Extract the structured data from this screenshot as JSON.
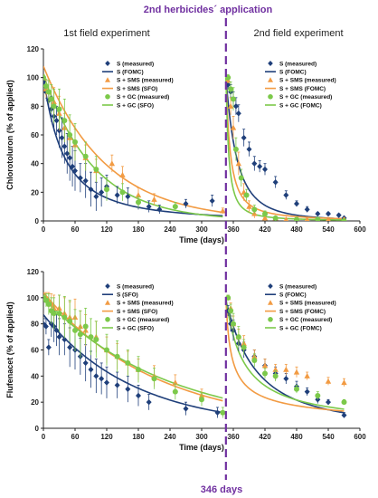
{
  "annotations": {
    "top": "2nd herbicides´ application",
    "bottom": "346 days",
    "line_color": "#7030a0"
  },
  "panel_titles": [
    "1st field experiment",
    "2nd field experiment"
  ],
  "colors": {
    "S": "#1f3f7a",
    "SMS": "#f29b43",
    "GC": "#7cc94a",
    "axis": "#222222"
  },
  "chart_data": [
    {
      "type": "scatter",
      "ylabel": "Chlorotoluron (% of applied)",
      "xlabel": "Time (days)",
      "xlim": [
        0,
        600
      ],
      "ylim": [
        0,
        120
      ],
      "xticks": [
        0,
        60,
        120,
        180,
        240,
        300,
        360,
        420,
        480,
        540,
        600
      ],
      "yticks": [
        0,
        20,
        40,
        60,
        80,
        100,
        120
      ],
      "grid": false,
      "legend_position": "top",
      "legend": [
        "S (measured)",
        "S (FOMC)",
        "S + SMS (measured)",
        "S + SMS (SFO)",
        "S + GC (measured)",
        "S + GC (SFO)"
      ],
      "legend2": [
        "S (measured)",
        "S (FOMC)",
        "S + SMS (measured)",
        "S + SMS (FOMC)",
        "S + GC (measured)",
        "S + GC (FOMC)"
      ],
      "series": [
        {
          "name": "S (measured)",
          "kind": "measured",
          "marker": "diamond",
          "color": "#1f3f7a",
          "x": [
            0,
            5,
            10,
            15,
            20,
            25,
            30,
            35,
            40,
            45,
            50,
            55,
            60,
            70,
            80,
            90,
            100,
            110,
            120,
            140,
            160,
            180,
            200,
            220,
            270,
            320,
            350,
            355,
            360,
            365,
            370,
            380,
            390,
            400,
            410,
            420,
            440,
            460,
            480,
            500,
            520,
            540,
            560,
            570
          ],
          "y": [
            97,
            90,
            84,
            78,
            73,
            70,
            63,
            58,
            52,
            47,
            44,
            38,
            35,
            30,
            28,
            22,
            17,
            20,
            24,
            18,
            17,
            13,
            10,
            8,
            12,
            14,
            95,
            90,
            85,
            80,
            75,
            58,
            50,
            40,
            38,
            36,
            27,
            18,
            12,
            8,
            5,
            5,
            4,
            2
          ],
          "err": [
            3,
            5,
            6,
            9,
            10,
            10,
            12,
            14,
            12,
            14,
            16,
            14,
            14,
            10,
            12,
            12,
            10,
            10,
            8,
            6,
            6,
            5,
            4,
            3,
            3,
            4,
            3,
            5,
            5,
            6,
            6,
            6,
            5,
            5,
            4,
            4,
            4,
            3,
            2,
            2,
            1,
            1,
            1,
            1
          ]
        },
        {
          "name": "S (FOMC)",
          "kind": "fit",
          "color": "#1f3f7a",
          "seg1": {
            "x0": 0,
            "x1": 340,
            "C0": 100,
            "alpha": 2.0,
            "beta": 80
          },
          "seg2": {
            "x0": 346,
            "x1": 570,
            "C0": 100,
            "alpha": 2.6,
            "beta": 55
          }
        },
        {
          "name": "S + SMS (measured)",
          "kind": "measured",
          "marker": "triangle",
          "color": "#f29b43",
          "x": [
            0,
            5,
            10,
            20,
            30,
            40,
            50,
            60,
            80,
            100,
            130,
            150,
            180,
            210,
            340,
            350,
            355,
            360,
            370,
            380,
            390,
            400,
            420,
            440,
            460,
            500,
            540,
            570
          ],
          "y": [
            100,
            92,
            90,
            83,
            75,
            65,
            58,
            53,
            44,
            35,
            40,
            32,
            18,
            15,
            7,
            98,
            80,
            65,
            40,
            20,
            10,
            5,
            2,
            2,
            1,
            1,
            1,
            1
          ],
          "err": [
            2,
            6,
            8,
            10,
            12,
            10,
            12,
            11,
            9,
            8,
            6,
            6,
            5,
            4,
            2,
            2,
            6,
            8,
            8,
            6,
            4,
            3,
            2,
            1,
            1,
            1,
            1,
            1
          ]
        },
        {
          "name": "S + SMS (SFO)",
          "kind": "fit",
          "color": "#f29b43",
          "seg1": {
            "x0": 0,
            "x1": 340,
            "C0": 108,
            "k": 0.0085
          },
          "seg2": {
            "x0": 346,
            "x1": 570,
            "C0": 100,
            "alpha": 1.4,
            "beta": 12
          }
        },
        {
          "name": "S + GC (measured)",
          "kind": "measured",
          "marker": "circle",
          "color": "#7cc94a",
          "x": [
            0,
            5,
            10,
            15,
            20,
            30,
            40,
            50,
            60,
            80,
            100,
            120,
            150,
            180,
            250,
            350,
            355,
            360,
            365,
            375,
            385,
            400,
            420,
            440,
            480,
            520,
            570
          ],
          "y": [
            100,
            94,
            90,
            85,
            80,
            78,
            70,
            60,
            55,
            45,
            36,
            22,
            20,
            13,
            10,
            100,
            92,
            85,
            50,
            30,
            18,
            8,
            5,
            2,
            1,
            1,
            0
          ],
          "err": [
            2,
            5,
            8,
            10,
            12,
            14,
            15,
            14,
            13,
            10,
            9,
            8,
            6,
            4,
            3,
            2,
            5,
            8,
            8,
            6,
            4,
            3,
            2,
            1,
            1,
            1,
            1
          ]
        },
        {
          "name": "S + GC (SFO)",
          "kind": "fit",
          "color": "#7cc94a",
          "seg1": {
            "x0": 0,
            "x1": 340,
            "C0": 102,
            "k": 0.0105
          },
          "seg2": {
            "x0": 346,
            "x1": 570,
            "C0": 100,
            "alpha": 1.5,
            "beta": 8
          }
        }
      ]
    },
    {
      "type": "scatter",
      "ylabel": "Flufenacet (% of applied)",
      "xlabel": "Time (days)",
      "xlim": [
        0,
        600
      ],
      "ylim": [
        0,
        120
      ],
      "xticks": [
        0,
        60,
        120,
        180,
        240,
        300,
        360,
        420,
        480,
        540,
        600
      ],
      "yticks": [
        0,
        20,
        40,
        60,
        80,
        100,
        120
      ],
      "grid": false,
      "legend_position": "top",
      "legend": [
        "S (measured)",
        "S (SFO)",
        "S + SMS (measured)",
        "S + SMS (SFO)",
        "S + GC (measured)",
        "S + GC (SFO)"
      ],
      "legend2": [
        "S (measured)",
        "S (FOMC)",
        "S + SMS (measured)",
        "S + SMS (FOMC)",
        "S + GC (measured)",
        "S + GC (FOMC)"
      ],
      "series": [
        {
          "name": "S (measured)",
          "kind": "measured",
          "marker": "diamond",
          "color": "#1f3f7a",
          "x": [
            0,
            5,
            10,
            15,
            20,
            25,
            30,
            40,
            50,
            60,
            70,
            80,
            90,
            100,
            110,
            120,
            140,
            160,
            180,
            200,
            270,
            330,
            350,
            355,
            360,
            370,
            380,
            400,
            420,
            440,
            460,
            480,
            500,
            520,
            540,
            570
          ],
          "y": [
            80,
            78,
            62,
            80,
            78,
            75,
            70,
            68,
            62,
            60,
            55,
            50,
            45,
            40,
            38,
            35,
            33,
            30,
            25,
            20,
            15,
            12,
            90,
            80,
            75,
            65,
            60,
            55,
            48,
            42,
            38,
            32,
            28,
            22,
            20,
            10
          ],
          "err": [
            4,
            6,
            6,
            10,
            12,
            12,
            14,
            12,
            15,
            15,
            14,
            14,
            14,
            13,
            12,
            12,
            10,
            10,
            8,
            6,
            5,
            4,
            4,
            6,
            8,
            6,
            6,
            5,
            5,
            5,
            4,
            4,
            3,
            3,
            2,
            2
          ]
        },
        {
          "name": "S (FOMC) / S (SFO)",
          "kind": "fit",
          "color": "#1f3f7a",
          "seg1": {
            "x0": 0,
            "x1": 340,
            "C0": 87,
            "k": 0.0058
          },
          "seg2": {
            "x0": 346,
            "x1": 570,
            "C0": 98,
            "alpha": 1.9,
            "beta": 110
          }
        },
        {
          "name": "S + SMS (measured)",
          "kind": "measured",
          "marker": "triangle",
          "color": "#f29b43",
          "x": [
            0,
            5,
            10,
            15,
            20,
            30,
            40,
            50,
            60,
            70,
            80,
            100,
            120,
            140,
            160,
            180,
            210,
            250,
            300,
            350,
            355,
            360,
            370,
            380,
            400,
            420,
            440,
            460,
            480,
            500,
            540,
            570
          ],
          "y": [
            100,
            100,
            98,
            95,
            92,
            92,
            88,
            85,
            85,
            78,
            75,
            70,
            60,
            55,
            50,
            45,
            40,
            35,
            25,
            100,
            92,
            80,
            70,
            65,
            55,
            48,
            45,
            45,
            43,
            40,
            36,
            35
          ],
          "err": [
            2,
            4,
            6,
            8,
            10,
            10,
            12,
            12,
            14,
            12,
            12,
            12,
            10,
            10,
            9,
            8,
            8,
            6,
            5,
            2,
            4,
            6,
            6,
            6,
            5,
            5,
            4,
            4,
            4,
            3,
            3,
            3
          ]
        },
        {
          "name": "S + SMS (SFO)",
          "kind": "fit",
          "color": "#f29b43",
          "seg1": {
            "x0": 0,
            "x1": 340,
            "C0": 104,
            "k": 0.0047
          },
          "seg2": {
            "x0": 346,
            "x1": 570,
            "C0": 98,
            "alpha": 0.55,
            "beta": 6
          }
        },
        {
          "name": "S + GC (measured)",
          "kind": "measured",
          "marker": "circle",
          "color": "#7cc94a",
          "x": [
            0,
            5,
            10,
            15,
            20,
            30,
            40,
            50,
            60,
            70,
            80,
            90,
            100,
            120,
            140,
            160,
            180,
            210,
            250,
            300,
            340,
            350,
            355,
            360,
            370,
            380,
            400,
            420,
            440,
            480,
            520,
            570
          ],
          "y": [
            100,
            98,
            95,
            90,
            88,
            88,
            85,
            82,
            75,
            72,
            78,
            70,
            68,
            60,
            55,
            50,
            45,
            38,
            28,
            22,
            12,
            100,
            90,
            80,
            70,
            62,
            52,
            42,
            40,
            30,
            25,
            20
          ],
          "err": [
            2,
            5,
            8,
            10,
            12,
            14,
            16,
            16,
            16,
            18,
            14,
            14,
            14,
            12,
            12,
            10,
            10,
            8,
            6,
            5,
            4,
            2,
            5,
            8,
            8,
            6,
            5,
            4,
            4,
            3,
            3,
            2
          ]
        },
        {
          "name": "S + GC (SFO)",
          "kind": "fit",
          "color": "#7cc94a",
          "seg1": {
            "x0": 0,
            "x1": 340,
            "C0": 100,
            "k": 0.0043
          },
          "seg2": {
            "x0": 346,
            "x1": 570,
            "C0": 100,
            "alpha": 0.9,
            "beta": 30
          }
        }
      ]
    }
  ]
}
